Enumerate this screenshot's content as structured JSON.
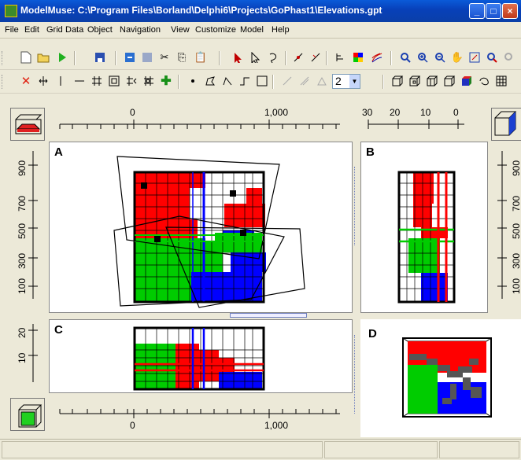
{
  "window": {
    "title": "ModelMuse: C:\\Program Files\\Borland\\Delphi6\\Projects\\GoPhast1\\Elevations.gpt",
    "minimize": "_",
    "maximize": "□",
    "close": "×"
  },
  "menu": [
    "File",
    "Edit",
    "Grid",
    "Data",
    "Object",
    "Navigation",
    "View",
    "Customize",
    "Model",
    "Help"
  ],
  "toolbar_1": {
    "icons": [
      "new-file-icon",
      "open-file-icon",
      "run-icon",
      "save-icon",
      "undo-icon",
      "redo-icon",
      "cut-icon",
      "copy-icon",
      "paste-icon",
      "select-arrow-icon",
      "select-point-icon",
      "lasso-icon",
      "add-vertex-icon",
      "delete-vertex-icon",
      "grid-spacing-icon",
      "color-grid-icon",
      "contour-icon",
      "zoom-icon",
      "zoom-in-icon",
      "zoom-out-icon",
      "pan-icon",
      "zoom-extent-icon",
      "restore-zoom-icon"
    ]
  },
  "toolbar_2": {
    "combo_value": "2",
    "icons": [
      "delete-column-icon",
      "move-column-icon",
      "add-line-icon",
      "add-row-icon",
      "grid-icon",
      "generate-grid-icon",
      "subdivide-icon",
      "add-point-icon",
      "create-point-icon",
      "create-polygon-icon",
      "create-line-icon",
      "create-rectangle-icon",
      "straight-line-icon"
    ]
  },
  "rulers": {
    "top_a": [
      "0",
      "1,000"
    ],
    "top_b": [
      "30",
      "20",
      "10",
      "0"
    ],
    "left_a": [
      "900",
      "700",
      "500",
      "300",
      "100"
    ],
    "left_c": [
      "20",
      "10"
    ],
    "right_b": [
      "900",
      "700",
      "500",
      "300",
      "100"
    ],
    "bottom": [
      "0",
      "1,000"
    ]
  },
  "panels": {
    "a": "A",
    "b": "B",
    "c": "C",
    "d": "D"
  },
  "colors": {
    "red": "#ff0000",
    "green": "#00cc00",
    "blue": "#0000ff",
    "accent": "#0a4fd0"
  }
}
